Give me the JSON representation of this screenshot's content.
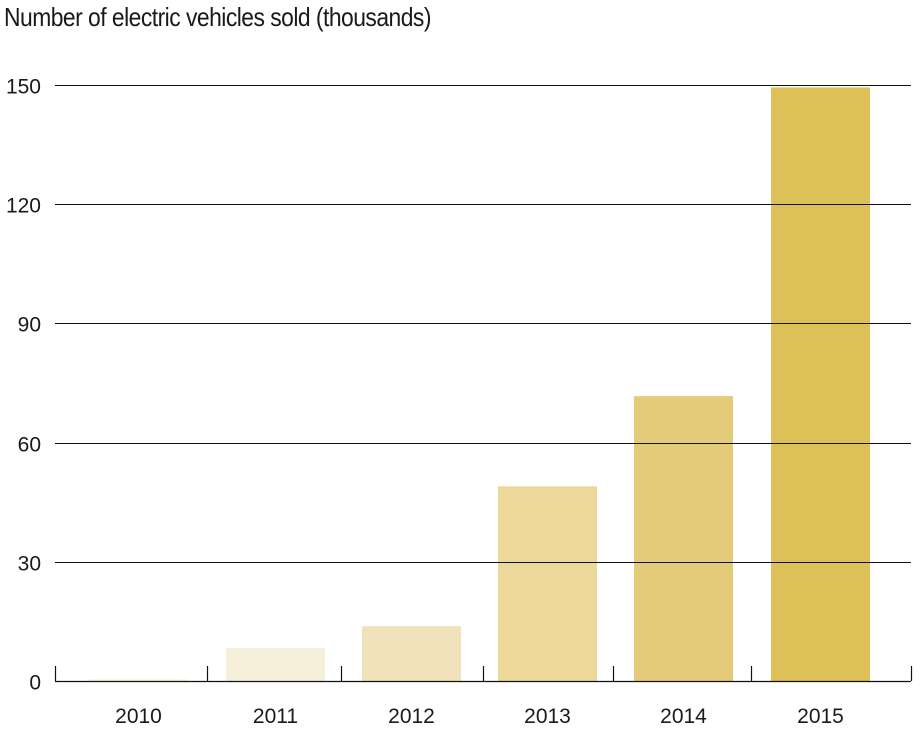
{
  "chart_data": {
    "type": "bar",
    "title": "Number of electric vehicles sold (thousands)",
    "xlabel": "",
    "ylabel": "",
    "categories": [
      "2010",
      "2011",
      "2012",
      "2013",
      "2014",
      "2015"
    ],
    "values": [
      0.4,
      8.3,
      13.8,
      49.0,
      71.7,
      149.4
    ],
    "colors": [
      "#F8F2DC",
      "#F6F0DB",
      "#F0E3BC",
      "#ECD899",
      "#E4CB7A",
      "#DDC158"
    ],
    "ylim": [
      0,
      150
    ],
    "yticks": [
      0,
      30,
      60,
      90,
      120,
      150
    ],
    "ytick_labels": [
      "0",
      "30",
      "60",
      "90",
      "120",
      "150"
    ],
    "grid": true,
    "legend": "none"
  }
}
